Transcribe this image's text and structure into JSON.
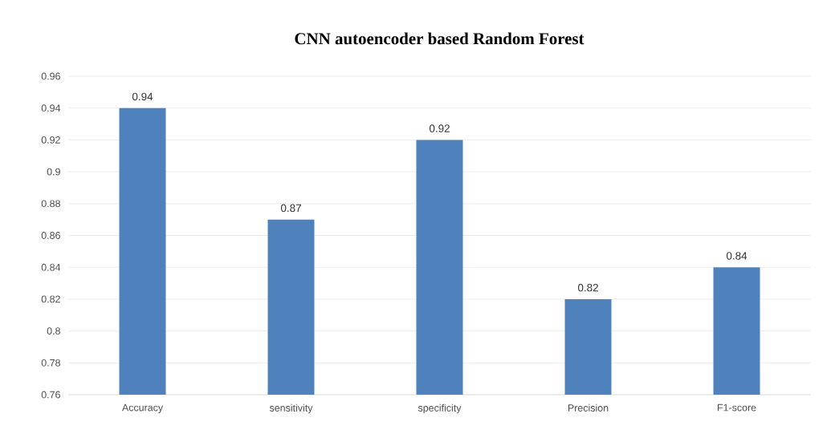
{
  "chart_data": {
    "type": "bar",
    "title": "CNN autoencoder based Random Forest",
    "categories": [
      "Accuracy",
      "sensitivity",
      "specificity",
      "Precision",
      "F1-score"
    ],
    "values": [
      0.94,
      0.87,
      0.92,
      0.82,
      0.84
    ],
    "color": "#4f81bd",
    "ylim": [
      0.76,
      0.96
    ],
    "yticks": [
      0.76,
      0.78,
      0.8,
      0.82,
      0.84,
      0.86,
      0.88,
      0.9,
      0.92,
      0.94,
      0.96
    ],
    "grid": "y",
    "data_labels": true
  }
}
